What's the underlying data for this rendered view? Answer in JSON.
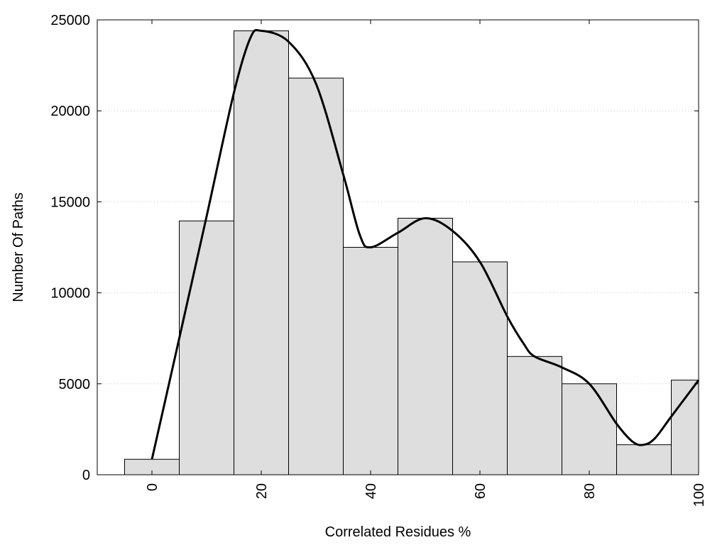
{
  "chart_data": {
    "type": "bar",
    "xlabel": "Correlated Residues %",
    "ylabel": "Number Of Paths",
    "xlim": [
      -10,
      100
    ],
    "ylim": [
      0,
      25000
    ],
    "xticks": [
      0,
      20,
      40,
      60,
      80,
      100
    ],
    "yticks": [
      0,
      5000,
      10000,
      15000,
      20000,
      25000
    ],
    "bin_width": 10,
    "bin_centers": [
      0,
      10,
      20,
      30,
      40,
      50,
      60,
      70,
      80,
      90,
      100
    ],
    "values": [
      850,
      13950,
      24400,
      21800,
      12500,
      14100,
      11700,
      6500,
      5000,
      1650,
      5200
    ],
    "curve": {
      "x": [
        0,
        5,
        10,
        15,
        18,
        20,
        25,
        30,
        35,
        38,
        40,
        45,
        50,
        55,
        60,
        65,
        68,
        70,
        75,
        80,
        85,
        88,
        90,
        92,
        95,
        100
      ],
      "y": [
        850,
        7500,
        14200,
        21000,
        24000,
        24400,
        23800,
        21500,
        16500,
        13200,
        12500,
        13300,
        14100,
        13400,
        11700,
        8700,
        7200,
        6500,
        5900,
        5000,
        2800,
        1800,
        1650,
        2000,
        3200,
        5200
      ]
    },
    "grid": true,
    "colors": {
      "bar_fill": "#dedede",
      "bar_stroke": "#000000",
      "curve": "#000000",
      "grid": "#c8c8c8"
    }
  }
}
